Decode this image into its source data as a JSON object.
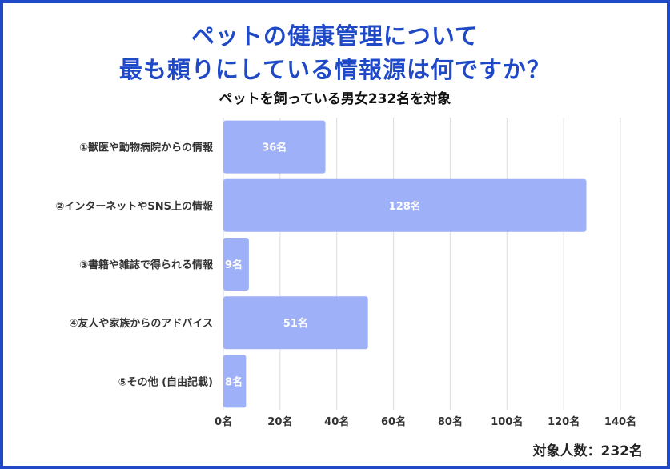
{
  "title_line1": "ペットの健康管理について",
  "title_line2": "最も頼りにしている情報源は何ですか？",
  "subtitle": "ペットを飼っている男女232名を対象",
  "footer": "対象人数：232名",
  "colors": {
    "accent": "#1f49c7",
    "bar": "#9eb0f8",
    "grid": "#dddddd"
  },
  "chart_data": {
    "type": "bar",
    "orientation": "horizontal",
    "categories": [
      "①獣医や動物病院からの情報",
      "②インターネットやSNS上の情報",
      "③書籍や雑誌で得られる情報",
      "④友人や家族からのアドバイス",
      "⑤その他 (自由記載)"
    ],
    "values": [
      36,
      128,
      9,
      51,
      8
    ],
    "data_labels": [
      "36名",
      "128名",
      "9名",
      "51名",
      "8名"
    ],
    "xlim": [
      0,
      140
    ],
    "ticks": [
      0,
      20,
      40,
      60,
      80,
      100,
      120,
      140
    ],
    "tick_labels": [
      "0名",
      "20名",
      "40名",
      "60名",
      "80名",
      "100名",
      "120名",
      "140名"
    ],
    "grid": true,
    "unit": "名"
  }
}
